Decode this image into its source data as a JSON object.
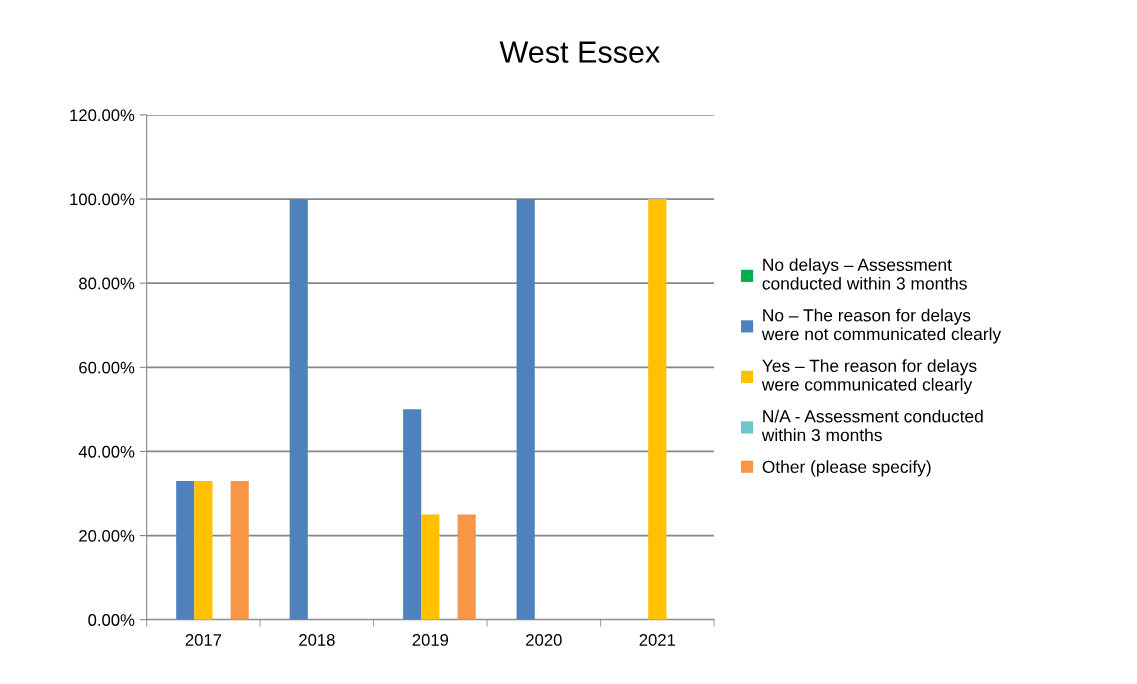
{
  "chart_data": {
    "type": "bar",
    "title": "West Essex",
    "categories": [
      "2017",
      "2018",
      "2019",
      "2020",
      "2021"
    ],
    "series": [
      {
        "name": "No delays – Assessment conducted within 3 months",
        "color": "#00b050",
        "values": [
          null,
          null,
          null,
          null,
          null
        ]
      },
      {
        "name": "No – The reason for delays were not communicated clearly",
        "color": "#4f81bd",
        "values": [
          33,
          100,
          50,
          100,
          null
        ]
      },
      {
        "name": "Yes – The reason for delays were communicated clearly",
        "color": "#ffc000",
        "values": [
          33,
          null,
          25,
          null,
          100
        ]
      },
      {
        "name": "N/A - Assessment conducted within 3 months",
        "color": "#6cc9c9",
        "values": [
          null,
          null,
          null,
          null,
          null
        ]
      },
      {
        "name": "Other (please specify)",
        "color": "#f79646",
        "values": [
          33,
          null,
          25,
          null,
          null
        ]
      }
    ],
    "ylim": [
      0,
      120
    ],
    "yticks": [
      {
        "value": 0,
        "label": "0.00%"
      },
      {
        "value": 20,
        "label": "20.00%"
      },
      {
        "value": 40,
        "label": "40.00%"
      },
      {
        "value": 60,
        "label": "60.00%"
      },
      {
        "value": 80,
        "label": "80.00%"
      },
      {
        "value": 100,
        "label": "100.00%"
      },
      {
        "value": 120,
        "label": "120.00%"
      }
    ],
    "grid": "y",
    "legend": "right"
  }
}
